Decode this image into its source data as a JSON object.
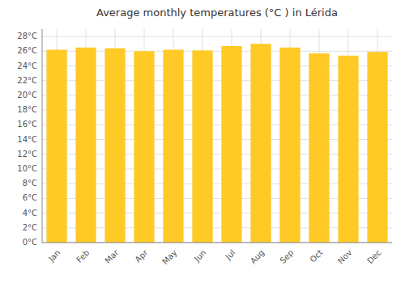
{
  "chart_data": {
    "type": "bar",
    "title": "Average monthly temperatures (°C ) in Lérida",
    "categories": [
      "Jan",
      "Feb",
      "Mar",
      "Apr",
      "May",
      "Jun",
      "Jul",
      "Aug",
      "Sep",
      "Oct",
      "Nov",
      "Dec"
    ],
    "values": [
      26.2,
      26.5,
      26.4,
      26.0,
      26.2,
      26.1,
      26.7,
      27.0,
      26.5,
      25.7,
      25.4,
      25.9
    ],
    "color": "#FFC926",
    "ylim": [
      0,
      29
    ],
    "yticks": [
      {
        "value": 0,
        "label": "0°C"
      },
      {
        "value": 2,
        "label": "2°C"
      },
      {
        "value": 4,
        "label": "4°C"
      },
      {
        "value": 6,
        "label": "6°C"
      },
      {
        "value": 8,
        "label": "8°C"
      },
      {
        "value": 10,
        "label": "10°C"
      },
      {
        "value": 12,
        "label": "12°C"
      },
      {
        "value": 14,
        "label": "14°C"
      },
      {
        "value": 16,
        "label": "16°C"
      },
      {
        "value": 18,
        "label": "18°C"
      },
      {
        "value": 20,
        "label": "20°C"
      },
      {
        "value": 22,
        "label": "22°C"
      },
      {
        "value": 24,
        "label": "24°C"
      },
      {
        "value": 26,
        "label": "26°C"
      },
      {
        "value": 28,
        "label": "28°C"
      }
    ],
    "grid": true
  }
}
